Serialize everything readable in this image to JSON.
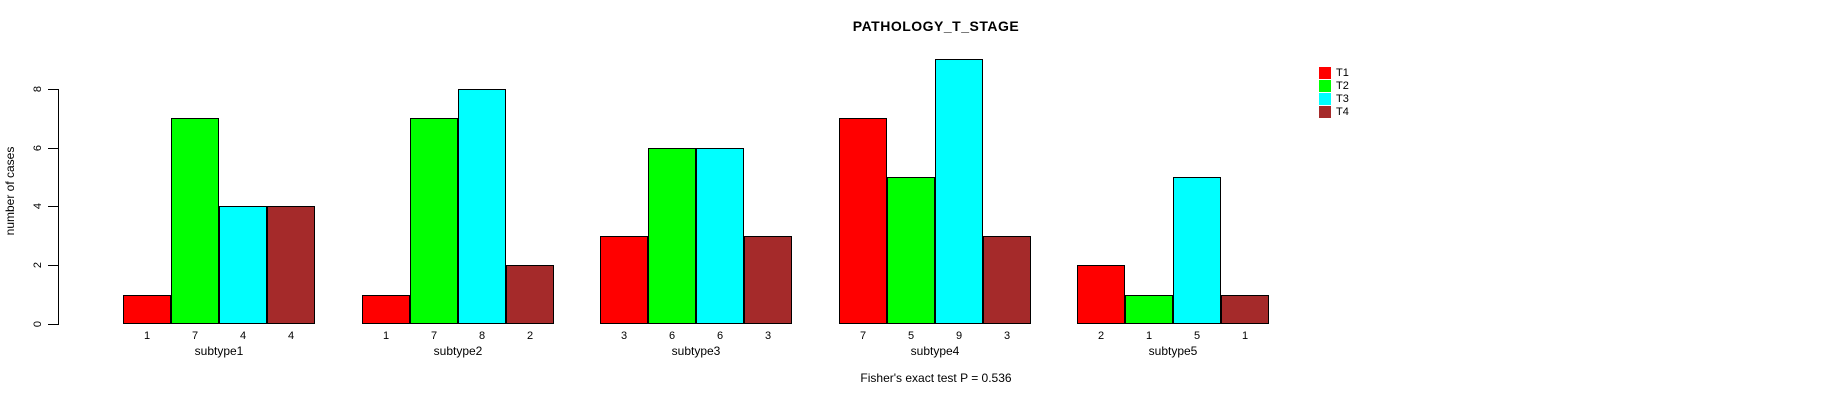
{
  "chart_data": {
    "type": "bar",
    "title": "PATHOLOGY_T_STAGE",
    "ylabel": "number of cases",
    "caption": "Fisher's exact test P = 0.536",
    "categories": [
      "subtype1",
      "subtype2",
      "subtype3",
      "subtype4",
      "subtype5"
    ],
    "series": [
      {
        "name": "T1",
        "color": "#FF0000",
        "values": [
          1,
          1,
          3,
          7,
          2
        ]
      },
      {
        "name": "T2",
        "color": "#00FF00",
        "values": [
          7,
          7,
          6,
          5,
          1
        ]
      },
      {
        "name": "T3",
        "color": "#00FFFF",
        "values": [
          4,
          8,
          6,
          9,
          5
        ]
      },
      {
        "name": "T4",
        "color": "#A52A2A",
        "values": [
          4,
          2,
          3,
          3,
          1
        ]
      }
    ],
    "yticks": [
      0,
      2,
      4,
      6,
      8
    ],
    "ylim": [
      0,
      9
    ],
    "grid": false,
    "bar_value_labels_shown": true,
    "legend": {
      "position": "top-right",
      "labels": [
        "T1",
        "T2",
        "T3",
        "T4"
      ]
    }
  }
}
